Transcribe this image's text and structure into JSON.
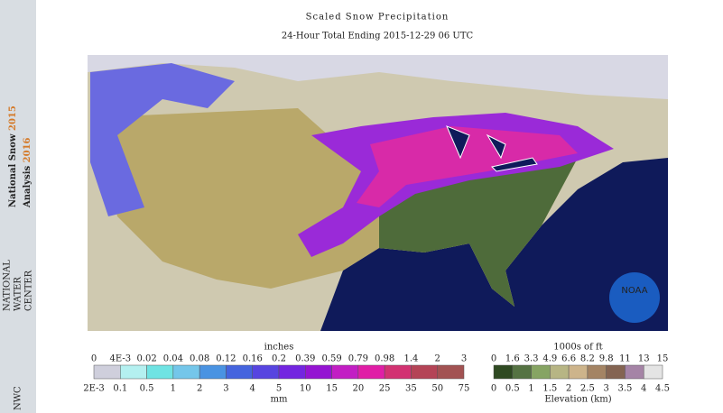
{
  "title": "Scaled Snow Precipitation",
  "subtitle": "24-Hour Total Ending 2015-12-29 06 UTC",
  "sidebar": {
    "line1": "National Snow",
    "year1": "2015",
    "line2": "Analysis",
    "year2": "2016",
    "logo": "NWC",
    "org": [
      "NATIONAL",
      "WATER",
      "CENTER"
    ]
  },
  "noaa": "NOAA",
  "snow_legend": {
    "top_title": "inches",
    "top_labels": [
      "0",
      "4E-3",
      "0.02",
      "0.04",
      "0.08",
      "0.12",
      "0.16",
      "0.2",
      "0.39",
      "0.59",
      "0.79",
      "0.98",
      "1.4",
      "2",
      "3"
    ],
    "bottom_labels": [
      "2E-3",
      "0.1",
      "0.5",
      "1",
      "2",
      "3",
      "4",
      "5",
      "10",
      "15",
      "20",
      "25",
      "35",
      "50",
      "75"
    ],
    "bottom_title": "mm",
    "colors": [
      "#cfcfdc",
      "#b4f0f0",
      "#6fe3e3",
      "#74c6ea",
      "#4a93e2",
      "#4564de",
      "#5745e0",
      "#7325e0",
      "#9414d2",
      "#c21ec4",
      "#e01ea6",
      "#d23272",
      "#b44456",
      "#a25252"
    ]
  },
  "elev_legend": {
    "top_title": "1000s of ft",
    "top_labels": [
      "0",
      "1.6",
      "3.3",
      "4.9",
      "6.6",
      "8.2",
      "9.8",
      "11",
      "13",
      "15"
    ],
    "bottom_labels": [
      "0",
      "0.5",
      "1",
      "1.5",
      "2",
      "2.5",
      "3",
      "3.5",
      "4",
      "4.5"
    ],
    "bottom_title": "Elevation (km)",
    "colors": [
      "#2f4a22",
      "#557343",
      "#86a463",
      "#b7b584",
      "#cdb48b",
      "#a48464",
      "#846452",
      "#a584a6",
      "#e4e4e4"
    ]
  }
}
